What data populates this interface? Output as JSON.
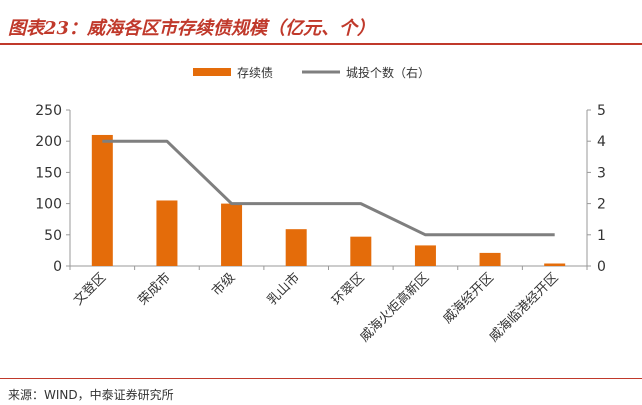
{
  "header": {
    "title": "图表23：威海各区市存续债规模（亿元、个）"
  },
  "footer": {
    "source": "来源：WIND，中泰证券研究所"
  },
  "colors": {
    "bar": "#E46C0A",
    "line": "#7F7F7F",
    "accent": "#C0392B"
  },
  "chart_data": {
    "type": "bar",
    "title": "威海各区市存续债规模（亿元、个）",
    "categories": [
      "文登区",
      "荣成市",
      "市级",
      "乳山市",
      "环翠区",
      "威海火炬高新区",
      "威海经开区",
      "威海临港经开区"
    ],
    "series": [
      {
        "name": "存续债",
        "type": "bar",
        "axis": "left",
        "values": [
          210,
          105,
          100,
          59,
          47,
          33,
          21,
          4
        ]
      },
      {
        "name": "城投个数（右）",
        "type": "line",
        "axis": "right",
        "values": [
          4,
          4,
          2,
          2,
          2,
          1,
          1,
          1
        ]
      }
    ],
    "y_left": {
      "min": 0,
      "max": 250,
      "ticks": [
        "0",
        "50",
        "100",
        "150",
        "200",
        "250"
      ]
    },
    "y_right": {
      "min": 0,
      "max": 5,
      "ticks": [
        "0",
        "1",
        "2",
        "3",
        "4",
        "5"
      ]
    },
    "legend": {
      "placement": "top-center",
      "entries": [
        "存续债",
        "城投个数（右）"
      ]
    },
    "grid": false
  }
}
